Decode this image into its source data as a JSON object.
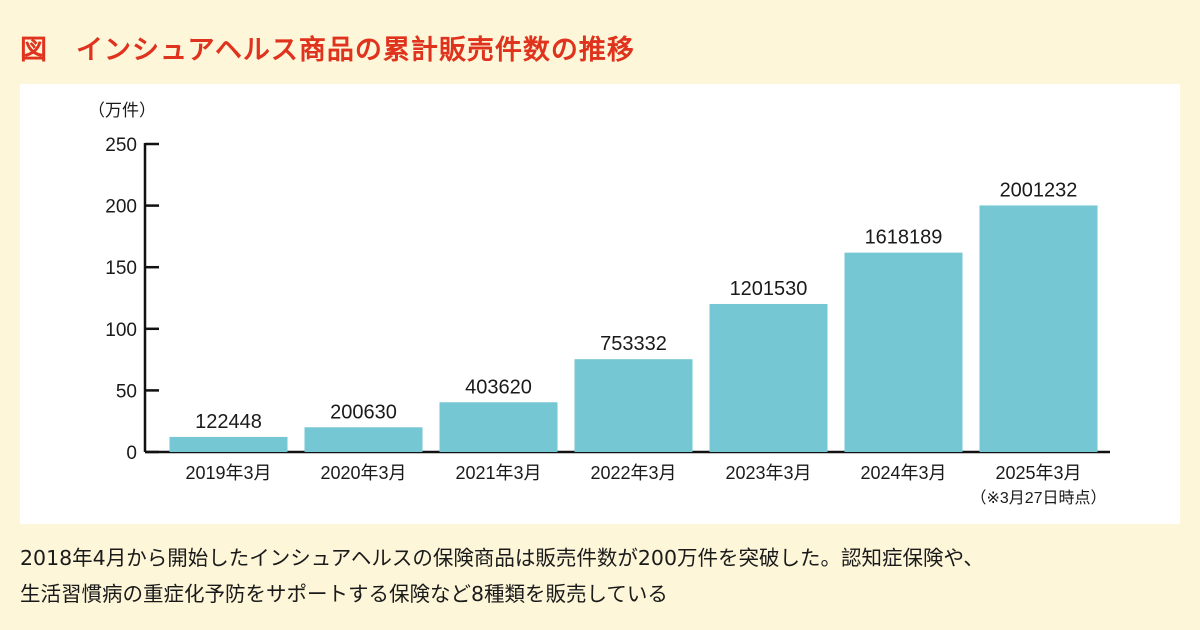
{
  "title": "図　インシュアヘルス商品の累計販売件数の推移",
  "caption": {
    "line1": "2018年4月から開始したインシュアヘルスの保険商品は販売件数が200万件を突破した。認知症保険や、",
    "line2": "生活習慣病の重症化予防をサポートする保険など8種類を販売している"
  },
  "colors": {
    "title": "#e0331d",
    "bar": "#75c7d3",
    "background": "#fdf6d9",
    "panel": "#ffffff"
  },
  "chart_data": {
    "type": "bar",
    "unit_label": "（万件）",
    "categories": [
      "2019年3月",
      "2020年3月",
      "2021年3月",
      "2022年3月",
      "2023年3月",
      "2024年3月",
      "2025年3月"
    ],
    "category_notes": [
      "",
      "",
      "",
      "",
      "",
      "",
      "（※3月27日時点）"
    ],
    "values": [
      12.2448,
      20.063,
      40.362,
      75.3332,
      120.153,
      161.8189,
      200.1232
    ],
    "data_labels": [
      "122448",
      "200630",
      "403620",
      "753332",
      "1201530",
      "1618189",
      "2001232"
    ],
    "yticks": [
      "0",
      "50",
      "100",
      "150",
      "200",
      "250"
    ],
    "ylim": [
      0,
      250
    ],
    "grid": false
  }
}
